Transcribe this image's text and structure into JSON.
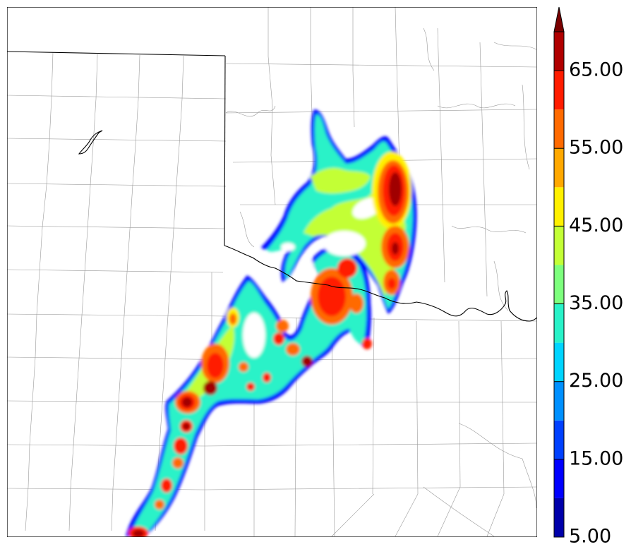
{
  "colorbar": {
    "tick_labels": [
      "5.00",
      "15.00",
      "25.00",
      "35.00",
      "45.00",
      "55.00",
      "65.00"
    ],
    "tick_values": [
      5,
      15,
      25,
      35,
      45,
      55,
      65
    ],
    "min": 5,
    "max": 70,
    "extend": "max",
    "bins": [
      {
        "lower": 5,
        "color": "#0000aa"
      },
      {
        "lower": 10,
        "color": "#0000ff"
      },
      {
        "lower": 15,
        "color": "#0040ff"
      },
      {
        "lower": 20,
        "color": "#0090ff"
      },
      {
        "lower": 25,
        "color": "#00d4ff"
      },
      {
        "lower": 30,
        "color": "#29f2c8"
      },
      {
        "lower": 35,
        "color": "#7dff7d"
      },
      {
        "lower": 40,
        "color": "#c3ff36"
      },
      {
        "lower": 45,
        "color": "#fff000"
      },
      {
        "lower": 50,
        "color": "#ffa800"
      },
      {
        "lower": 55,
        "color": "#ff6a00"
      },
      {
        "lower": 60,
        "color": "#ff1c00"
      },
      {
        "lower": 65,
        "color": "#b00000"
      }
    ],
    "extend_color": "#7a0000"
  },
  "map": {
    "background": "#ffffff",
    "county_line_color": "#9a9a9a",
    "state_line_color": "#000000",
    "field_colors": {
      "low": "#0000ff",
      "mid": "#29f2c8",
      "moderate": "#c3ff36",
      "high": "#fff000",
      "very_high": "#ff6a00",
      "extreme": "#ff1c00",
      "max": "#a00000"
    }
  }
}
